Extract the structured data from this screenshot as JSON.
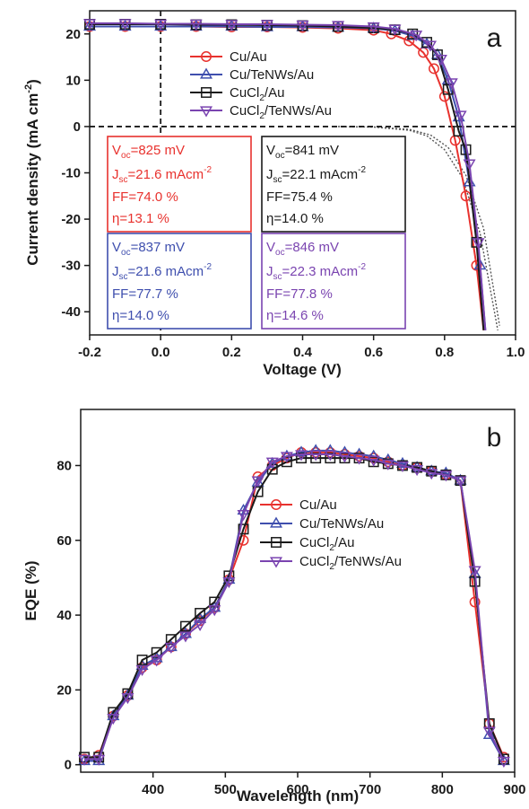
{
  "chart_data": [
    {
      "panel": "a",
      "type": "line",
      "xlabel": "Voltage (V)",
      "ylabel": "Current density (mA cm",
      "ylabel_sup": "-2",
      "ylabel_close": ")",
      "xlim": [
        -0.2,
        1.0
      ],
      "ylim": [
        -45,
        25
      ],
      "xticks": [
        -0.2,
        0.0,
        0.2,
        0.4,
        0.6,
        0.8,
        1.0
      ],
      "xtick_labels": [
        "-0.2",
        "0.0",
        "0.2",
        "0.4",
        "0.6",
        "0.8",
        "1.0"
      ],
      "yticks": [
        20,
        10,
        0,
        -10,
        -20,
        -30,
        -40
      ],
      "ytick_labels": [
        "20",
        "10",
        "0",
        "-10",
        "-20",
        "-30",
        "-40"
      ],
      "grid": false,
      "legend_position": "top-right",
      "series": [
        {
          "name": "Cu/Au",
          "color": "#e8322e",
          "marker": "circle",
          "x": [
            -0.2,
            -0.1,
            0.0,
            0.1,
            0.2,
            0.3,
            0.4,
            0.5,
            0.6,
            0.65,
            0.7,
            0.74,
            0.77,
            0.8,
            0.83,
            0.86,
            0.89,
            0.91
          ],
          "y": [
            21.6,
            21.6,
            21.6,
            21.6,
            21.5,
            21.5,
            21.4,
            21.2,
            20.8,
            20.0,
            18.5,
            16.0,
            12.5,
            6.5,
            -3.0,
            -15.0,
            -30.0,
            -44.0
          ]
        },
        {
          "name": "Cu/TeNWs/Au",
          "color": "#3f4fae",
          "marker": "triangle-up",
          "x": [
            -0.2,
            -0.1,
            0.0,
            0.1,
            0.2,
            0.3,
            0.4,
            0.5,
            0.6,
            0.66,
            0.71,
            0.75,
            0.78,
            0.81,
            0.84,
            0.87,
            0.9,
            0.915
          ],
          "y": [
            21.6,
            21.6,
            21.6,
            21.6,
            21.6,
            21.5,
            21.5,
            21.4,
            21.2,
            20.7,
            19.6,
            17.8,
            15.5,
            10.0,
            2.0,
            -12.0,
            -30.0,
            -44.0
          ]
        },
        {
          "name": "CuCl2/Au",
          "color": "#1a1a1a",
          "marker": "square",
          "x": [
            -0.2,
            -0.1,
            0.0,
            0.1,
            0.2,
            0.3,
            0.4,
            0.5,
            0.6,
            0.66,
            0.71,
            0.75,
            0.78,
            0.81,
            0.84,
            0.86,
            0.89,
            0.91
          ],
          "y": [
            22.1,
            22.1,
            22.1,
            22.0,
            22.0,
            21.9,
            21.8,
            21.6,
            21.3,
            20.9,
            20.0,
            18.2,
            15.5,
            8.0,
            -1.0,
            -5.0,
            -25.0,
            -44.0
          ]
        },
        {
          "name": "CuCl2/TeNWs/Au",
          "color": "#7a44b0",
          "marker": "triangle-down",
          "x": [
            -0.2,
            -0.1,
            0.0,
            0.1,
            0.2,
            0.3,
            0.4,
            0.5,
            0.6,
            0.66,
            0.72,
            0.76,
            0.79,
            0.82,
            0.845,
            0.87,
            0.895,
            0.915
          ],
          "y": [
            22.3,
            22.3,
            22.2,
            22.2,
            22.1,
            22.1,
            22.0,
            21.9,
            21.6,
            21.1,
            19.8,
            17.6,
            14.6,
            9.5,
            2.5,
            -8.0,
            -25.0,
            -44.0
          ]
        }
      ],
      "dark_curves": [
        {
          "x": [
            0.5,
            0.6,
            0.7,
            0.75,
            0.8,
            0.85,
            0.9,
            0.95
          ],
          "y": [
            0,
            -0.1,
            -0.8,
            -2.0,
            -5.0,
            -11.0,
            -23.0,
            -44.0
          ]
        },
        {
          "x": [
            0.5,
            0.6,
            0.7,
            0.76,
            0.81,
            0.86,
            0.91,
            0.955
          ],
          "y": [
            0,
            -0.1,
            -0.6,
            -1.8,
            -4.5,
            -10.5,
            -22.0,
            -43.0
          ]
        }
      ],
      "reference_lines": {
        "x": 0,
        "y": 0
      },
      "boxes": [
        {
          "color": "#e8322e",
          "voc": "=825 mV",
          "jsc": "=21.6 mAcm",
          "ff": "FF=74.0 %",
          "eta": "η=13.1 %"
        },
        {
          "color": "#1a1a1a",
          "voc": "=841 mV",
          "jsc": "=22.1 mAcm",
          "ff": "FF=75.4 %",
          "eta": "η=14.0 %"
        },
        {
          "color": "#3f4fae",
          "voc": "=837 mV",
          "jsc": "=21.6 mAcm",
          "ff": "FF=77.7 %",
          "eta": "η=14.0 %"
        },
        {
          "color": "#7a44b0",
          "voc": "=846 mV",
          "jsc": "=22.3 mAcm",
          "ff": "FF=77.8 %",
          "eta": "η=14.6 %"
        }
      ],
      "box_symbols": {
        "v": "V",
        "voc_sub": "oc",
        "j": "J",
        "jsc_sub": "sc",
        "jsc_sup": "-2"
      }
    },
    {
      "panel": "b",
      "type": "line",
      "xlabel": "Wavelength (nm)",
      "ylabel": "EQE (%)",
      "xlim": [
        300,
        900
      ],
      "ylim": [
        -2,
        95
      ],
      "xticks": [
        400,
        500,
        600,
        700,
        800,
        900
      ],
      "xtick_labels": [
        "400",
        "500",
        "600",
        "700",
        "800",
        "900"
      ],
      "yticks": [
        0,
        20,
        40,
        60,
        80
      ],
      "ytick_labels": [
        "0",
        "20",
        "40",
        "60",
        "80"
      ],
      "grid": false,
      "legend_position": "center-right",
      "x": [
        305,
        325,
        345,
        365,
        385,
        405,
        425,
        445,
        465,
        485,
        505,
        525,
        545,
        565,
        585,
        605,
        625,
        645,
        665,
        685,
        705,
        725,
        745,
        765,
        785,
        805,
        825,
        845,
        865,
        885
      ],
      "series": [
        {
          "name": "Cu/Au",
          "color": "#e8322e",
          "marker": "circle",
          "y": [
            1.5,
            2.5,
            13,
            18.5,
            26,
            28,
            31.5,
            35,
            38.5,
            42,
            49.5,
            60,
            77,
            80,
            82,
            83.5,
            83.5,
            83.5,
            83,
            82.5,
            82,
            81,
            80,
            79.5,
            78.5,
            77.5,
            76,
            43.5,
            11,
            2
          ]
        },
        {
          "name": "Cu/TeNWs/Au",
          "color": "#3f4fae",
          "marker": "triangle-up",
          "y": [
            1,
            1,
            13,
            18.5,
            26.5,
            28.5,
            31.5,
            35,
            39,
            42,
            49.5,
            68,
            75.5,
            80.5,
            82.5,
            83.5,
            84,
            84,
            83.5,
            83,
            82.5,
            81.5,
            80.5,
            79.5,
            78.5,
            78,
            76,
            51,
            8,
            1
          ]
        },
        {
          "name": "CuCl2/Au",
          "color": "#1a1a1a",
          "marker": "square",
          "y": [
            2,
            2,
            14,
            19,
            28,
            30,
            33.5,
            37,
            40.5,
            43.5,
            50.5,
            63,
            73,
            79,
            81,
            82,
            82,
            82,
            82,
            82,
            81,
            80.5,
            80,
            79.5,
            78.5,
            77.5,
            76,
            49,
            11,
            1.5
          ]
        },
        {
          "name": "CuCl2/TeNWs/Au",
          "color": "#7a44b0",
          "marker": "triangle-down",
          "y": [
            1.5,
            1.5,
            12.5,
            18,
            25.5,
            28,
            31.5,
            34.5,
            37.5,
            41.5,
            49,
            67,
            76,
            81,
            82.5,
            83,
            83,
            83,
            82.5,
            82,
            81.5,
            80.5,
            80,
            79,
            78,
            77.5,
            76,
            52,
            9,
            1
          ]
        }
      ]
    }
  ]
}
